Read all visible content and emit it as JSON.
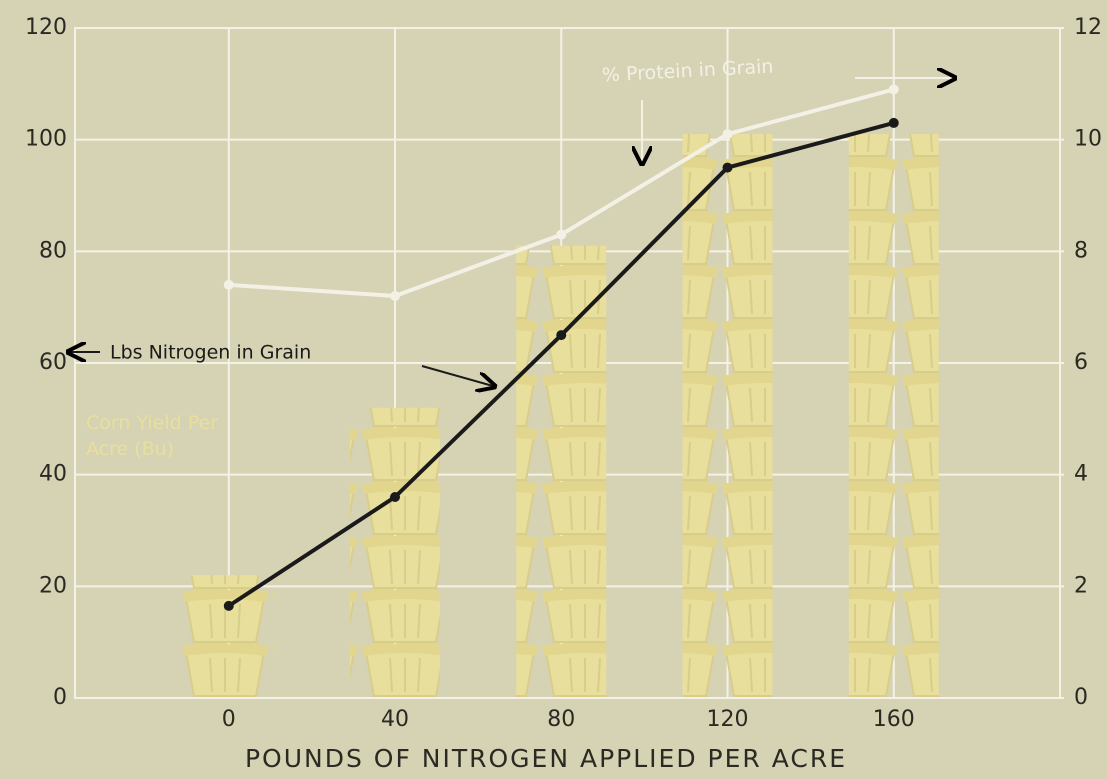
{
  "chart_data": {
    "type": "combo",
    "x_label": "POUNDS OF NITROGEN APPLIED PER ACRE",
    "x": [
      0,
      40,
      80,
      120,
      160
    ],
    "xlim": [
      -37,
      200
    ],
    "xticks": [
      0,
      40,
      80,
      120,
      160
    ],
    "ylim": [
      0,
      120
    ],
    "yticks": [
      0,
      20,
      40,
      60,
      80,
      100,
      120
    ],
    "y2lim": [
      0,
      12
    ],
    "y2ticks": [
      0,
      2,
      4,
      6,
      8,
      10,
      12
    ],
    "grid": true,
    "series": [
      {
        "name": "Corn Yield Per Acre (Bu)",
        "type": "pictogram",
        "color": "#e9df9c",
        "values": [
          22,
          52,
          81,
          101,
          101
        ]
      },
      {
        "name": "% Protein in Grain",
        "type": "line",
        "axis": "y2",
        "color": "#f3f1e6",
        "values": [
          7.4,
          7.2,
          8.3,
          10.1,
          10.9
        ]
      },
      {
        "name": "Lbs Nitrogen in Grain",
        "type": "line",
        "color": "#1a1a1a",
        "values": [
          16.5,
          36,
          65,
          95,
          103
        ]
      }
    ]
  }
}
